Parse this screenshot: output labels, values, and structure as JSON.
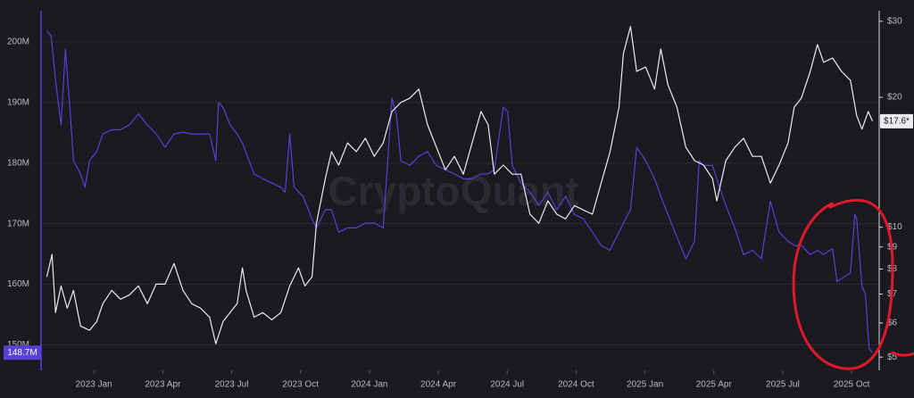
{
  "chart_data": {
    "type": "line",
    "watermark": "CryptoQuant",
    "xlim": [
      -2.3,
      34.2
    ],
    "xticks": [
      {
        "value": 0,
        "label": "2023 Jan"
      },
      {
        "value": 3,
        "label": "2023 Apr"
      },
      {
        "value": 6,
        "label": "2023 Jul"
      },
      {
        "value": 9,
        "label": "2023 Oct"
      },
      {
        "value": 12,
        "label": "2024 Jan"
      },
      {
        "value": 15,
        "label": "2024 Apr"
      },
      {
        "value": 18,
        "label": "2024 Jul"
      },
      {
        "value": 21,
        "label": "2024 Oct"
      },
      {
        "value": 24,
        "label": "2025 Jan"
      },
      {
        "value": 27,
        "label": "2025 Apr"
      },
      {
        "value": 30,
        "label": "2025 Jul"
      },
      {
        "value": 33,
        "label": "2025 Oct"
      }
    ],
    "ylim": [
      145.8,
      206.9
    ],
    "yticks": [
      {
        "value": 150,
        "label": "150M"
      },
      {
        "value": 160,
        "label": "160M"
      },
      {
        "value": 170,
        "label": "170M"
      },
      {
        "value": 180,
        "label": "180M"
      },
      {
        "value": 190,
        "label": "190M"
      },
      {
        "value": 200,
        "label": "200M"
      }
    ],
    "y2lim": [
      4.66,
      33.6
    ],
    "y2log": true,
    "y2ticks": [
      {
        "value": 5,
        "label": "$5"
      },
      {
        "value": 6,
        "label": "$6"
      },
      {
        "value": 7,
        "label": "$7"
      },
      {
        "value": 8,
        "label": "$8"
      },
      {
        "value": 9,
        "label": "$9"
      },
      {
        "value": 10,
        "label": "$10"
      },
      {
        "value": 20,
        "label": "$20"
      },
      {
        "value": 30,
        "label": "$30"
      }
    ],
    "grid": true,
    "series": [
      {
        "color": "#5a3fd8",
        "axis": "y",
        "last_label": "148.7M",
        "x": [
          -2.05,
          -1.86,
          -1.67,
          -1.43,
          -1.24,
          -1.05,
          -0.89,
          -0.58,
          -0.39,
          -0.19,
          0.12,
          0.39,
          0.78,
          1.16,
          1.55,
          1.94,
          2.33,
          2.71,
          3.1,
          3.49,
          3.88,
          4.26,
          4.65,
          5.04,
          5.31,
          5.43,
          5.62,
          5.93,
          6.24,
          6.47,
          6.98,
          7.36,
          7.75,
          8.14,
          8.33,
          8.53,
          8.72,
          9.11,
          9.5,
          9.69,
          10.08,
          10.35,
          10.66,
          11.05,
          11.43,
          11.82,
          12.21,
          12.6,
          12.98,
          13.18,
          13.37,
          13.76,
          14.15,
          14.53,
          14.92,
          15.31,
          15.7,
          16.09,
          16.47,
          16.86,
          17.17,
          17.44,
          17.83,
          18.02,
          18.22,
          18.6,
          18.99,
          19.38,
          19.77,
          20.16,
          20.54,
          20.93,
          21.32,
          21.71,
          22.09,
          22.48,
          22.87,
          23.06,
          23.37,
          23.64,
          24.03,
          24.42,
          24.69,
          25.0,
          25.39,
          25.78,
          26.16,
          26.36,
          26.55,
          26.94,
          27.13,
          27.52,
          27.91,
          28.29,
          28.68,
          29.07,
          29.46,
          29.84,
          30.23,
          30.5,
          30.81,
          31.2,
          31.51,
          31.78,
          32.17,
          32.36,
          32.56,
          32.95,
          33.14,
          33.22,
          33.45,
          33.6,
          33.76,
          33.91
        ],
        "values": [
          201.8,
          201.0,
          193.7,
          186.3,
          198.8,
          189.2,
          180.4,
          178.2,
          176.0,
          180.4,
          181.9,
          184.8,
          185.5,
          185.5,
          186.3,
          188.1,
          186.3,
          184.8,
          182.6,
          184.8,
          185.1,
          184.8,
          184.8,
          184.8,
          180.4,
          190.0,
          189.2,
          186.3,
          184.8,
          183.3,
          178.2,
          177.4,
          176.7,
          176.0,
          175.2,
          184.8,
          176.0,
          174.5,
          170.8,
          169.3,
          172.3,
          172.3,
          168.6,
          169.3,
          169.3,
          170.1,
          170.1,
          169.3,
          190.7,
          187.8,
          180.4,
          179.6,
          181.1,
          181.9,
          179.6,
          178.9,
          178.2,
          177.4,
          177.4,
          178.2,
          178.2,
          178.9,
          189.2,
          188.5,
          179.6,
          176.7,
          175.2,
          173.0,
          175.2,
          172.3,
          174.5,
          171.5,
          170.8,
          168.6,
          166.4,
          165.6,
          168.6,
          170.1,
          172.3,
          182.6,
          180.4,
          177.4,
          174.5,
          171.5,
          167.8,
          164.2,
          167.1,
          180.4,
          179.6,
          179.6,
          177.4,
          173.0,
          169.3,
          164.9,
          165.6,
          164.2,
          173.7,
          168.6,
          167.1,
          166.4,
          166.4,
          164.9,
          165.6,
          164.9,
          165.9,
          160.5,
          160.9,
          161.9,
          171.5,
          170.8,
          159.7,
          158.3,
          149.4,
          148.7
        ]
      },
      {
        "color": "#ecebf0",
        "axis": "y2",
        "last_label": "$17.6*",
        "x": [
          -2.05,
          -1.82,
          -1.67,
          -1.43,
          -1.16,
          -0.89,
          -0.58,
          -0.19,
          0.12,
          0.39,
          0.78,
          1.16,
          1.55,
          1.94,
          2.33,
          2.71,
          3.1,
          3.49,
          3.88,
          4.26,
          4.65,
          5.04,
          5.31,
          5.62,
          5.93,
          6.24,
          6.47,
          6.63,
          6.98,
          7.36,
          7.75,
          8.14,
          8.53,
          8.91,
          9.19,
          9.5,
          9.69,
          10.08,
          10.35,
          10.66,
          11.05,
          11.43,
          11.82,
          12.21,
          12.6,
          12.98,
          13.37,
          13.76,
          14.15,
          14.53,
          14.92,
          15.31,
          15.7,
          16.09,
          16.47,
          16.86,
          17.17,
          17.44,
          17.83,
          18.22,
          18.6,
          18.99,
          19.38,
          19.77,
          20.16,
          20.54,
          20.93,
          21.32,
          21.71,
          22.09,
          22.48,
          22.87,
          23.06,
          23.37,
          23.64,
          24.03,
          24.42,
          24.69,
          25.0,
          25.39,
          25.78,
          26.16,
          26.55,
          26.94,
          27.13,
          27.52,
          27.91,
          28.29,
          28.68,
          29.07,
          29.46,
          29.84,
          30.23,
          30.5,
          30.81,
          31.2,
          31.51,
          31.78,
          32.17,
          32.56,
          32.95,
          33.22,
          33.45,
          33.72,
          33.91
        ],
        "values": [
          7.67,
          8.65,
          6.34,
          7.31,
          6.49,
          7.14,
          5.9,
          5.77,
          6.04,
          6.65,
          7.14,
          6.81,
          6.97,
          7.31,
          6.65,
          7.38,
          7.38,
          8.24,
          7.14,
          6.65,
          6.49,
          6.19,
          5.37,
          6.04,
          6.34,
          6.65,
          8.05,
          7.14,
          6.19,
          6.34,
          6.1,
          6.34,
          7.31,
          8.05,
          7.31,
          7.67,
          10.21,
          12.97,
          14.96,
          13.93,
          15.67,
          14.96,
          16.07,
          14.59,
          15.67,
          18.53,
          19.45,
          19.91,
          20.89,
          17.26,
          15.31,
          13.58,
          14.59,
          13.27,
          15.67,
          18.53,
          17.26,
          13.27,
          13.93,
          13.27,
          13.27,
          10.72,
          10.21,
          11.51,
          10.72,
          10.45,
          11.22,
          10.96,
          10.72,
          12.65,
          14.96,
          18.97,
          25.23,
          29.17,
          22.96,
          23.5,
          20.89,
          25.88,
          21.38,
          18.97,
          15.31,
          14.26,
          13.93,
          12.97,
          11.51,
          14.26,
          15.31,
          16.07,
          14.59,
          14.59,
          12.65,
          13.93,
          15.67,
          18.97,
          19.91,
          22.96,
          26.49,
          24.1,
          24.66,
          22.96,
          21.88,
          18.11,
          16.87,
          18.53,
          17.6
        ]
      }
    ]
  }
}
